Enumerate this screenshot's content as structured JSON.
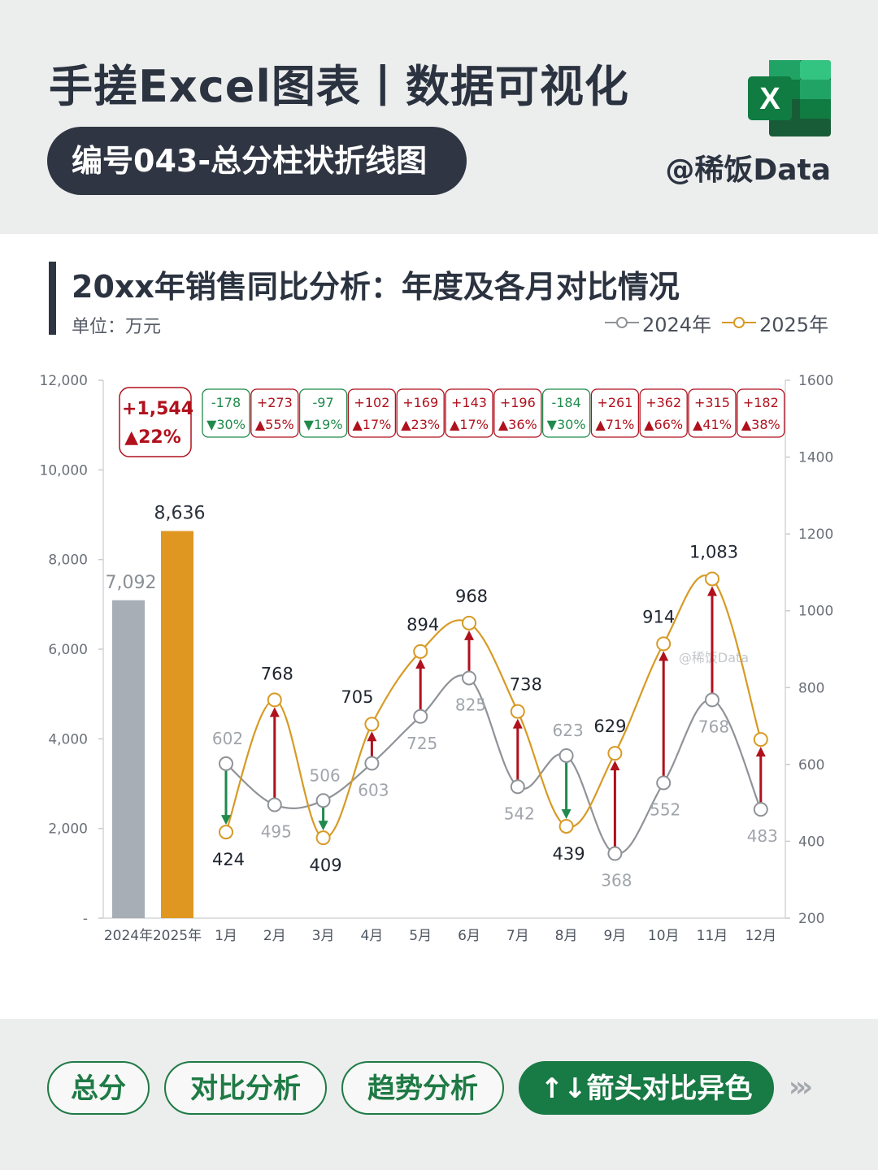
{
  "header": {
    "title": "手搓Excel图表丨数据可视化",
    "subtitle": "编号043-总分柱状折线图",
    "author": "@稀饭Data",
    "logo_letter": "X",
    "logo_icon": "excel-icon"
  },
  "chart_title": "20xx年销售同比分析：年度及各月对比情况",
  "unit_label": "单位：万元",
  "legend": [
    {
      "label": "2024年",
      "color": "#8f9398"
    },
    {
      "label": "2025年",
      "color": "#d79a25"
    }
  ],
  "watermark": "@稀饭Data",
  "colors": {
    "bar_2024": "#a7aeb5",
    "bar_2025": "#e09722",
    "line_2024": "#8f9398",
    "line_2025": "#d79a25",
    "up": "#b0111d",
    "down": "#1f8a4c"
  },
  "chart_data": {
    "type": "bar+line",
    "total_chart": {
      "categories": [
        "2024年",
        "2025年"
      ],
      "values": [
        7092,
        8636
      ],
      "value_labels": [
        "7,092",
        "8,636"
      ],
      "yticks": [
        "-",
        "2,000",
        "4,000",
        "6,000",
        "8,000",
        "10,000",
        "12,000"
      ],
      "ylim": [
        0,
        12000
      ],
      "badge": {
        "diff": "+1,544",
        "pct": "▲22%",
        "direction": "up"
      }
    },
    "monthly_chart": {
      "categories": [
        "1月",
        "2月",
        "3月",
        "4月",
        "5月",
        "6月",
        "7月",
        "8月",
        "9月",
        "10月",
        "11月",
        "12月"
      ],
      "series": [
        {
          "name": "2024年",
          "values": [
            602,
            495,
            506,
            603,
            725,
            825,
            542,
            623,
            368,
            552,
            768,
            483
          ]
        },
        {
          "name": "2025年",
          "values": [
            424,
            768,
            409,
            705,
            894,
            968,
            738,
            439,
            629,
            914,
            1083,
            665
          ]
        }
      ],
      "label_2024": [
        "602",
        "495",
        "506",
        "603",
        "725",
        "825",
        "542",
        "623",
        "368",
        "552",
        "768",
        "483"
      ],
      "label_2025": [
        "424",
        "768",
        "409",
        "705",
        "894",
        "968",
        "738",
        "439",
        "629",
        "914",
        "1,083",
        ""
      ],
      "yticks_right": [
        "200",
        "400",
        "600",
        "800",
        "1000",
        "1200",
        "1400",
        "1600"
      ],
      "ylim": [
        200,
        1600
      ],
      "badges": [
        {
          "diff": "-178",
          "pct": "▼30%",
          "direction": "down"
        },
        {
          "diff": "+273",
          "pct": "▲55%",
          "direction": "up"
        },
        {
          "diff": "-97",
          "pct": "▼19%",
          "direction": "down"
        },
        {
          "diff": "+102",
          "pct": "▲17%",
          "direction": "up"
        },
        {
          "diff": "+169",
          "pct": "▲23%",
          "direction": "up"
        },
        {
          "diff": "+143",
          "pct": "▲17%",
          "direction": "up"
        },
        {
          "diff": "+196",
          "pct": "▲36%",
          "direction": "up"
        },
        {
          "diff": "-184",
          "pct": "▼30%",
          "direction": "down"
        },
        {
          "diff": "+261",
          "pct": "▲71%",
          "direction": "up"
        },
        {
          "diff": "+362",
          "pct": "▲66%",
          "direction": "up"
        },
        {
          "diff": "+315",
          "pct": "▲41%",
          "direction": "up"
        },
        {
          "diff": "+182",
          "pct": "▲38%",
          "direction": "up"
        }
      ]
    }
  },
  "footer_tags": [
    {
      "label": "总分",
      "active": false
    },
    {
      "label": "对比分析",
      "active": false
    },
    {
      "label": "趋势分析",
      "active": false
    },
    {
      "label": "↑↓箭头对比异色",
      "active": true
    }
  ],
  "footer_more": "›››"
}
